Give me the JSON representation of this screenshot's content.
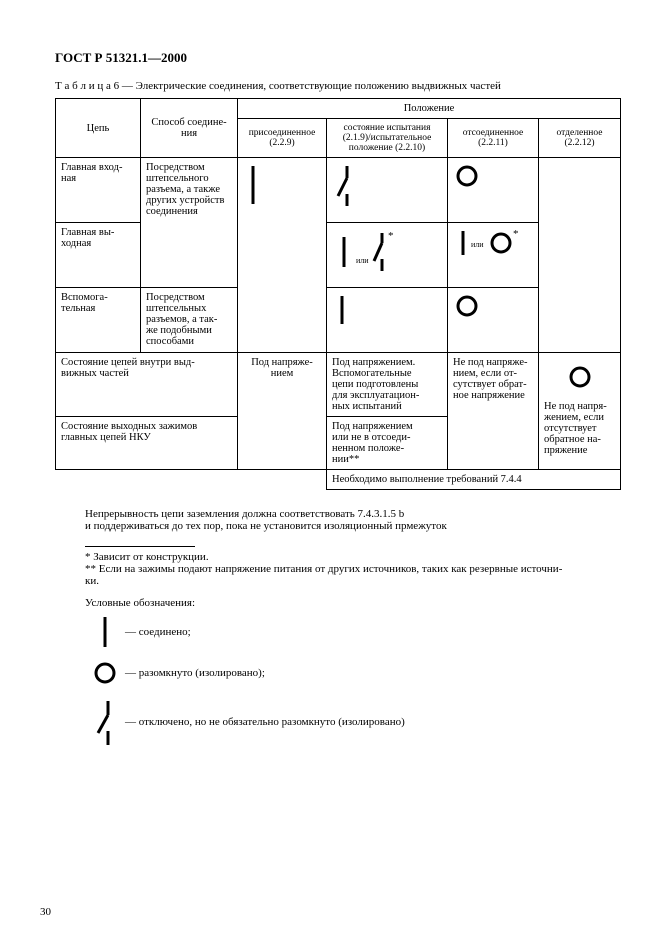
{
  "doc_id": "ГОСТ Р 51321.1—2000",
  "table_caption": "Т а б л и ц а  6 — Электрические соединения, соответствующие положению выдвижных частей",
  "columns": {
    "c1": "Цепь",
    "c2": "Способ соедине-\nния",
    "pos_header": "Положение",
    "p1": "присоединенное\n(2.2.9)",
    "p2": "состояние испытания\n(2.1.9)/испытательное\nположение (2.2.10)",
    "p3": "отсоединенное\n(2.2.11)",
    "p4": "отделенное\n(2.2.12)"
  },
  "rows": {
    "r1_c1": "Главная вход-\nная",
    "r2_c1": "Главная вы-\nходная",
    "r3_c1": "Вспомога-\nтельная",
    "method_main": "Посредством\nштепсельного\nразъема, а также\nдругих устройств\nсоединения",
    "method_aux": "Посредством\nштепсельных\nразъемов, а так-\nже подобными\nспособами",
    "r4_c1": "Состояние цепей внутри выд-\nвижных частей",
    "r5_c1": "Состояние выходных зажимов\nглавных цепей НКУ",
    "r45_c2": "Под напряже-\nнием",
    "r4_p2": "Под напряжением.\nВспомогательные\nцепи подготовлены\nдля эксплуатацион-\nных испытаний",
    "r5_p2": "Под напряжением\nили не в отсоеди-\nненном положе-\nнии**",
    "r45_p3": "Не под напряже-\nнием, если от-\nсутствует обрат-\nное напряжение",
    "r45_p4": "Не под напря-\nжением, если\nотсутствует\nобратное на-\nпряжение",
    "r6": "Необходимо выполнение требований 7.4.4"
  },
  "note_main": "Непрерывность цепи заземления должна соответствовать 7.4.3.1.5 b\nи поддерживаться до тех пор, пока не установится изоляционный прмежуток",
  "footnote1": "* Зависит от конструкции.",
  "footnote2": "** Если на зажимы подают напряжение питания от других источников, таких как резервные источни-\nки.",
  "legend_title": "Условные обозначения:",
  "legend1": "— соединено;",
  "legend2": "— разомкнуто (изолировано);",
  "legend3": "— отключено, но не обязательно разомкнуто (изолировано)",
  "page_number": "30",
  "colors": {
    "text": "#000000",
    "bg": "#ffffff",
    "border": "#000000",
    "stroke_width": 3
  }
}
